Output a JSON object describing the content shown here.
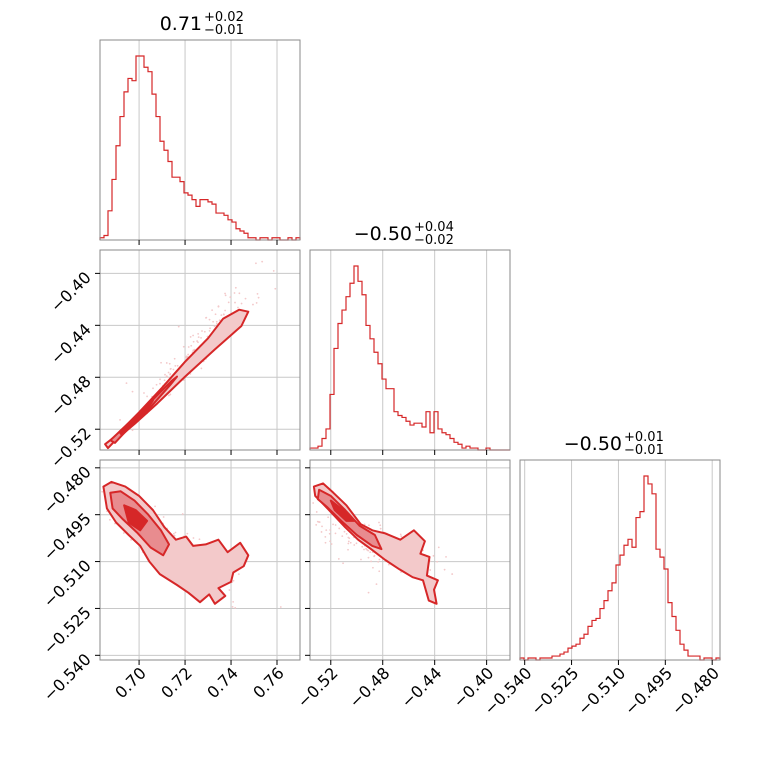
{
  "colors": {
    "accent": "#d62728",
    "fill_light": "#f3c9ca",
    "fill_mid": "#e88c8f",
    "grid": "#c8c8c8",
    "frame": "#8a8a8a"
  },
  "chart_data": {
    "type": "corner",
    "parameters": [
      {
        "title": {
          "base": "0.71",
          "plus": "+0.02",
          "minus": "−0.01"
        },
        "ticks": [
          0.7,
          0.72,
          0.74,
          0.76
        ],
        "tick_labels": [
          "0.70",
          "0.72",
          "0.74",
          "0.76"
        ],
        "range": [
          0.683,
          0.77
        ]
      },
      {
        "title": {
          "base": "−0.50",
          "plus": "+0.04",
          "minus": "−0.02"
        },
        "ticks": [
          -0.52,
          -0.48,
          -0.44,
          -0.4
        ],
        "tick_labels": [
          "−0.52",
          "−0.48",
          "−0.44",
          "−0.40"
        ],
        "range": [
          -0.536,
          -0.382
        ]
      },
      {
        "title": {
          "base": "−0.50",
          "plus": "+0.01",
          "minus": "−0.01"
        },
        "ticks": [
          -0.54,
          -0.525,
          -0.51,
          -0.495,
          -0.48
        ],
        "tick_labels": [
          "−0.540",
          "−0.525",
          "−0.510",
          "−0.495",
          "−0.480"
        ],
        "range": [
          -0.5415,
          -0.4775
        ]
      }
    ],
    "histograms": [
      {
        "param": 0,
        "bin_start": 0.683,
        "bin_width": 0.00174,
        "counts": [
          1,
          2,
          13,
          27,
          42,
          55,
          66,
          72,
          71,
          82,
          82,
          77,
          75,
          65,
          55,
          44,
          40,
          35,
          28,
          28,
          26,
          21,
          20,
          18,
          15,
          18,
          18,
          17,
          16,
          12,
          12,
          11,
          9,
          8,
          5,
          4,
          3,
          1,
          1,
          0,
          1,
          1,
          0,
          1,
          1,
          0,
          0,
          1,
          0,
          1
        ]
      },
      {
        "param": 1,
        "bin_start": -0.536,
        "bin_width": 0.00308,
        "counts": [
          1,
          1,
          2,
          6,
          11,
          29,
          53,
          66,
          73,
          80,
          87,
          96,
          88,
          81,
          65,
          58,
          51,
          45,
          37,
          32,
          32,
          20,
          18,
          17,
          15,
          13,
          14,
          14,
          12,
          20,
          9,
          20,
          11,
          9,
          8,
          6,
          4,
          3,
          1,
          2,
          1,
          1,
          0,
          0,
          1,
          0,
          0,
          0,
          0,
          0
        ]
      },
      {
        "param": 2,
        "bin_start": -0.5415,
        "bin_width": 0.00128,
        "counts": [
          1,
          0,
          1,
          1,
          0,
          1,
          1,
          1,
          2,
          2,
          3,
          4,
          6,
          7,
          8,
          11,
          13,
          17,
          20,
          21,
          26,
          30,
          35,
          39,
          48,
          53,
          58,
          61,
          57,
          72,
          75,
          93,
          89,
          84,
          56,
          52,
          46,
          29,
          22,
          15,
          8,
          5,
          2,
          2,
          2,
          0,
          1,
          1,
          0,
          1
        ]
      }
    ],
    "joint_2d": [
      {
        "x_param": 0,
        "y_param": 1,
        "correlation": "strong positive",
        "contours": [
          {
            "level": "outer",
            "points": [
              [
                0.6852,
                -0.5315
              ],
              [
                0.69,
                -0.525
              ],
              [
                0.7,
                -0.507
              ],
              [
                0.71,
                -0.488
              ],
              [
                0.72,
                -0.468
              ],
              [
                0.73,
                -0.45
              ],
              [
                0.7365,
                -0.435
              ],
              [
                0.7435,
                -0.428
              ],
              [
                0.7475,
                -0.4295
              ],
              [
                0.7445,
                -0.4405
              ],
              [
                0.733,
                -0.4585
              ],
              [
                0.72,
                -0.4795
              ],
              [
                0.708,
                -0.5
              ],
              [
                0.698,
                -0.516
              ],
              [
                0.69,
                -0.528
              ],
              [
                0.6865,
                -0.5345
              ]
            ]
          },
          {
            "level": "middle",
            "points": [
              [
                0.6875,
                -0.5285
              ],
              [
                0.695,
                -0.516
              ],
              [
                0.705,
                -0.499
              ],
              [
                0.714,
                -0.483
              ],
              [
                0.7165,
                -0.4795
              ],
              [
                0.7135,
                -0.486
              ],
              [
                0.704,
                -0.505
              ],
              [
                0.695,
                -0.52
              ],
              [
                0.6895,
                -0.5305
              ]
            ]
          },
          {
            "level": "inner",
            "points": [
              [
                0.6915,
                -0.522
              ],
              [
                0.699,
                -0.51
              ],
              [
                0.706,
                -0.498
              ],
              [
                0.7045,
                -0.502
              ],
              [
                0.6985,
                -0.5145
              ],
              [
                0.6925,
                -0.5245
              ]
            ]
          }
        ],
        "scatter_cloud": {
          "center": [
            0.725,
            -0.458
          ],
          "slope": 2.2
        }
      },
      {
        "x_param": 0,
        "y_param": 2,
        "correlation": "negative",
        "contours": [
          {
            "level": "outer",
            "points": [
              [
                0.6845,
                -0.486
              ],
              [
                0.688,
                -0.4845
              ],
              [
                0.694,
                -0.486
              ],
              [
                0.7,
                -0.489
              ],
              [
                0.706,
                -0.4935
              ],
              [
                0.711,
                -0.499
              ],
              [
                0.716,
                -0.503
              ],
              [
                0.7205,
                -0.502
              ],
              [
                0.7235,
                -0.505
              ],
              [
                0.729,
                -0.5045
              ],
              [
                0.7345,
                -0.503
              ],
              [
                0.7385,
                -0.507
              ],
              [
                0.744,
                -0.504
              ],
              [
                0.7475,
                -0.508
              ],
              [
                0.7455,
                -0.5115
              ],
              [
                0.741,
                -0.5135
              ],
              [
                0.74,
                -0.5165
              ],
              [
                0.7345,
                -0.5185
              ],
              [
                0.7375,
                -0.521
              ],
              [
                0.733,
                -0.5235
              ],
              [
                0.7305,
                -0.5205
              ],
              [
                0.7265,
                -0.523
              ],
              [
                0.7215,
                -0.52
              ],
              [
                0.7165,
                -0.5175
              ],
              [
                0.709,
                -0.514
              ],
              [
                0.7045,
                -0.51
              ],
              [
                0.7005,
                -0.505
              ],
              [
                0.6955,
                -0.5015
              ],
              [
                0.69,
                -0.4975
              ],
              [
                0.686,
                -0.493
              ]
            ]
          },
          {
            "level": "middle",
            "points": [
              [
                0.6875,
                -0.488
              ],
              [
                0.692,
                -0.4875
              ],
              [
                0.698,
                -0.4905
              ],
              [
                0.704,
                -0.495
              ],
              [
                0.7095,
                -0.5
              ],
              [
                0.713,
                -0.5045
              ],
              [
                0.7105,
                -0.508
              ],
              [
                0.705,
                -0.5055
              ],
              [
                0.6995,
                -0.501
              ],
              [
                0.693,
                -0.4965
              ],
              [
                0.6885,
                -0.493
              ]
            ]
          },
          {
            "level": "inner",
            "points": [
              [
                0.6935,
                -0.492
              ],
              [
                0.6985,
                -0.4935
              ],
              [
                0.7035,
                -0.497
              ],
              [
                0.7005,
                -0.5
              ],
              [
                0.6955,
                -0.4975
              ]
            ]
          }
        ],
        "scatter_cloud": {
          "center": [
            0.715,
            -0.505
          ],
          "slope": -0.55
        }
      },
      {
        "x_param": 1,
        "y_param": 2,
        "correlation": "negative",
        "contours": [
          {
            "level": "outer",
            "points": [
              [
                -0.533,
                -0.486
              ],
              [
                -0.526,
                -0.485
              ],
              [
                -0.518,
                -0.488
              ],
              [
                -0.508,
                -0.492
              ],
              [
                -0.497,
                -0.498
              ],
              [
                -0.488,
                -0.5
              ],
              [
                -0.478,
                -0.501
              ],
              [
                -0.4665,
                -0.503
              ],
              [
                -0.456,
                -0.5
              ],
              [
                -0.4475,
                -0.5035
              ],
              [
                -0.451,
                -0.5075
              ],
              [
                -0.444,
                -0.5085
              ],
              [
                -0.446,
                -0.5145
              ],
              [
                -0.4375,
                -0.516
              ],
              [
                -0.4405,
                -0.519
              ],
              [
                -0.4385,
                -0.5235
              ],
              [
                -0.4445,
                -0.5225
              ],
              [
                -0.449,
                -0.516
              ],
              [
                -0.457,
                -0.515
              ],
              [
                -0.467,
                -0.5125
              ],
              [
                -0.478,
                -0.5095
              ],
              [
                -0.489,
                -0.506
              ],
              [
                -0.499,
                -0.503
              ],
              [
                -0.509,
                -0.499
              ],
              [
                -0.518,
                -0.495
              ],
              [
                -0.526,
                -0.4915
              ],
              [
                -0.532,
                -0.489
              ]
            ]
          },
          {
            "level": "middle",
            "points": [
              [
                -0.529,
                -0.487
              ],
              [
                -0.52,
                -0.489
              ],
              [
                -0.509,
                -0.4935
              ],
              [
                -0.498,
                -0.4985
              ],
              [
                -0.486,
                -0.5015
              ],
              [
                -0.481,
                -0.506
              ],
              [
                -0.488,
                -0.505
              ],
              [
                -0.5,
                -0.5015
              ],
              [
                -0.512,
                -0.497
              ],
              [
                -0.523,
                -0.4925
              ],
              [
                -0.53,
                -0.49
              ]
            ]
          },
          {
            "level": "inner",
            "points": [
              [
                -0.52,
                -0.4905
              ],
              [
                -0.509,
                -0.494
              ],
              [
                -0.502,
                -0.497
              ],
              [
                -0.508,
                -0.497
              ],
              [
                -0.517,
                -0.4935
              ]
            ]
          }
        ],
        "scatter_cloud": {
          "center": [
            -0.485,
            -0.505
          ],
          "slope": -0.25
        }
      }
    ]
  }
}
